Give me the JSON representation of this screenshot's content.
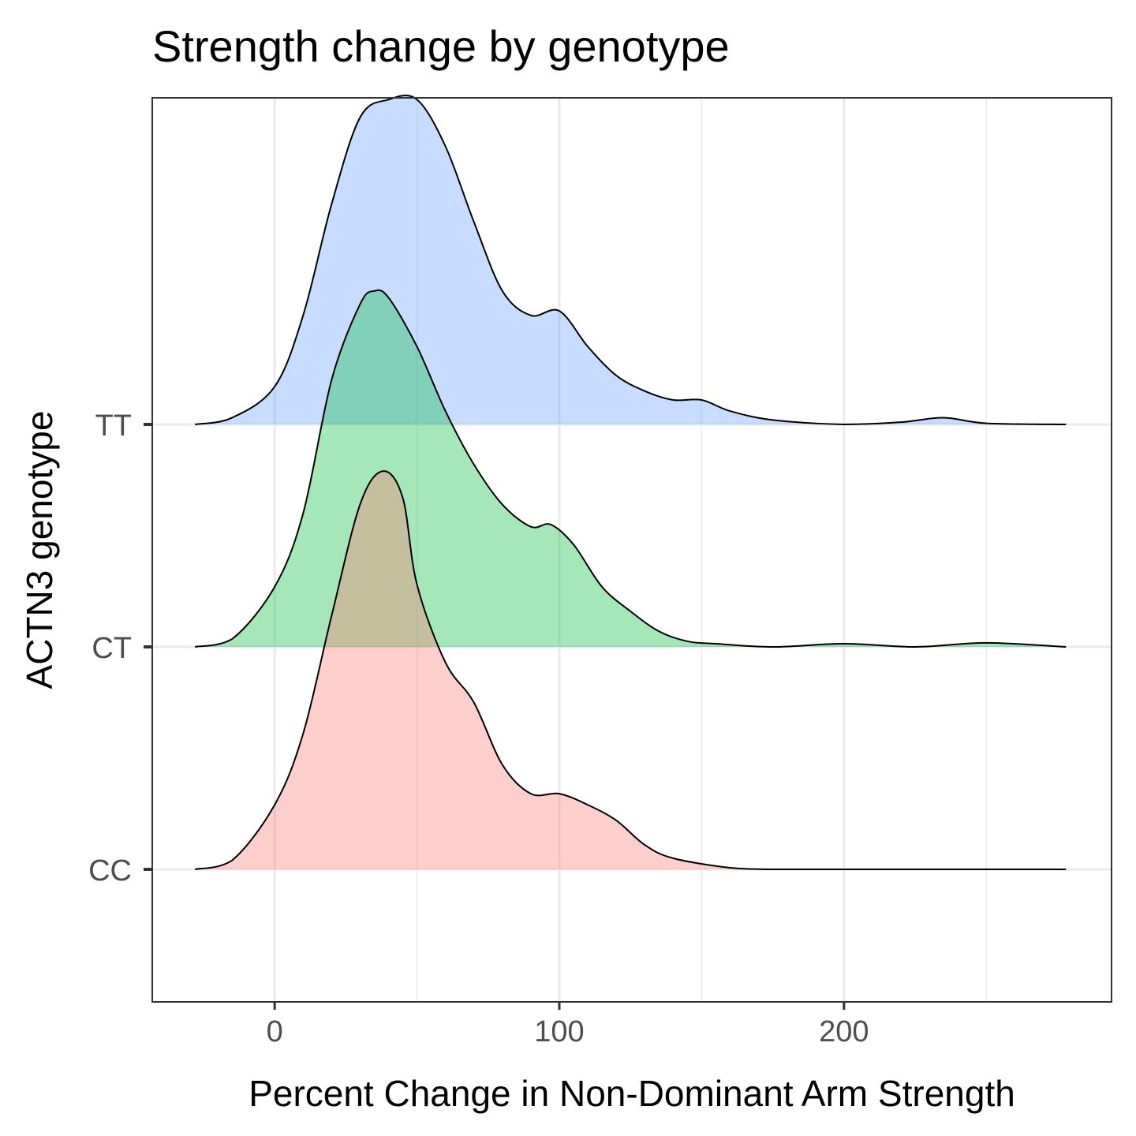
{
  "chart_data": {
    "type": "ridgeline density",
    "title": "Strength change by genotype",
    "xlabel": "Percent Change in Non-Dominant Arm Strength",
    "ylabel": "ACTN3 genotype",
    "xlim": [
      -43,
      294
    ],
    "x_ticks": [
      0,
      100,
      200
    ],
    "x_tick_labels": [
      "0",
      "100",
      "200"
    ],
    "categories": [
      "CC",
      "CT",
      "TT"
    ],
    "grid": true,
    "legend": "none",
    "series": [
      {
        "category": "CC",
        "color": "#F8766D",
        "x": [
          -28,
          -15,
          0,
          10,
          20,
          30,
          38,
          45,
          50,
          60,
          70,
          80,
          90,
          100,
          110,
          120,
          130,
          140,
          160,
          175,
          200,
          250,
          278
        ],
        "height": [
          0,
          0.04,
          0.29,
          0.61,
          1.14,
          1.64,
          1.79,
          1.67,
          1.28,
          0.93,
          0.75,
          0.47,
          0.34,
          0.34,
          0.29,
          0.22,
          0.11,
          0.05,
          0.007,
          0,
          0,
          0,
          0
        ]
      },
      {
        "category": "CT",
        "color": "#00BA38",
        "x": [
          -28,
          -15,
          0,
          10,
          20,
          30,
          35,
          40,
          50,
          60,
          70,
          80,
          90,
          97,
          105,
          115,
          125,
          135,
          145,
          155,
          175,
          200,
          225,
          250,
          278
        ],
        "height": [
          0,
          0.035,
          0.27,
          0.6,
          1.2,
          1.54,
          1.6,
          1.57,
          1.35,
          1.06,
          0.82,
          0.64,
          0.54,
          0.55,
          0.46,
          0.27,
          0.16,
          0.07,
          0.025,
          0.014,
          0,
          0.014,
          0,
          0.018,
          0
        ]
      },
      {
        "category": "TT",
        "color": "#619CFF",
        "x": [
          -28,
          -15,
          0,
          10,
          20,
          30,
          40,
          50,
          60,
          70,
          80,
          90,
          100,
          110,
          120,
          130,
          140,
          150,
          160,
          175,
          200,
          220,
          235,
          250,
          278
        ],
        "height": [
          0,
          0.03,
          0.17,
          0.49,
          0.99,
          1.38,
          1.46,
          1.46,
          1.25,
          0.91,
          0.6,
          0.49,
          0.51,
          0.35,
          0.22,
          0.15,
          0.11,
          0.11,
          0.06,
          0.02,
          0,
          0.01,
          0.03,
          0.005,
          0
        ]
      }
    ]
  }
}
